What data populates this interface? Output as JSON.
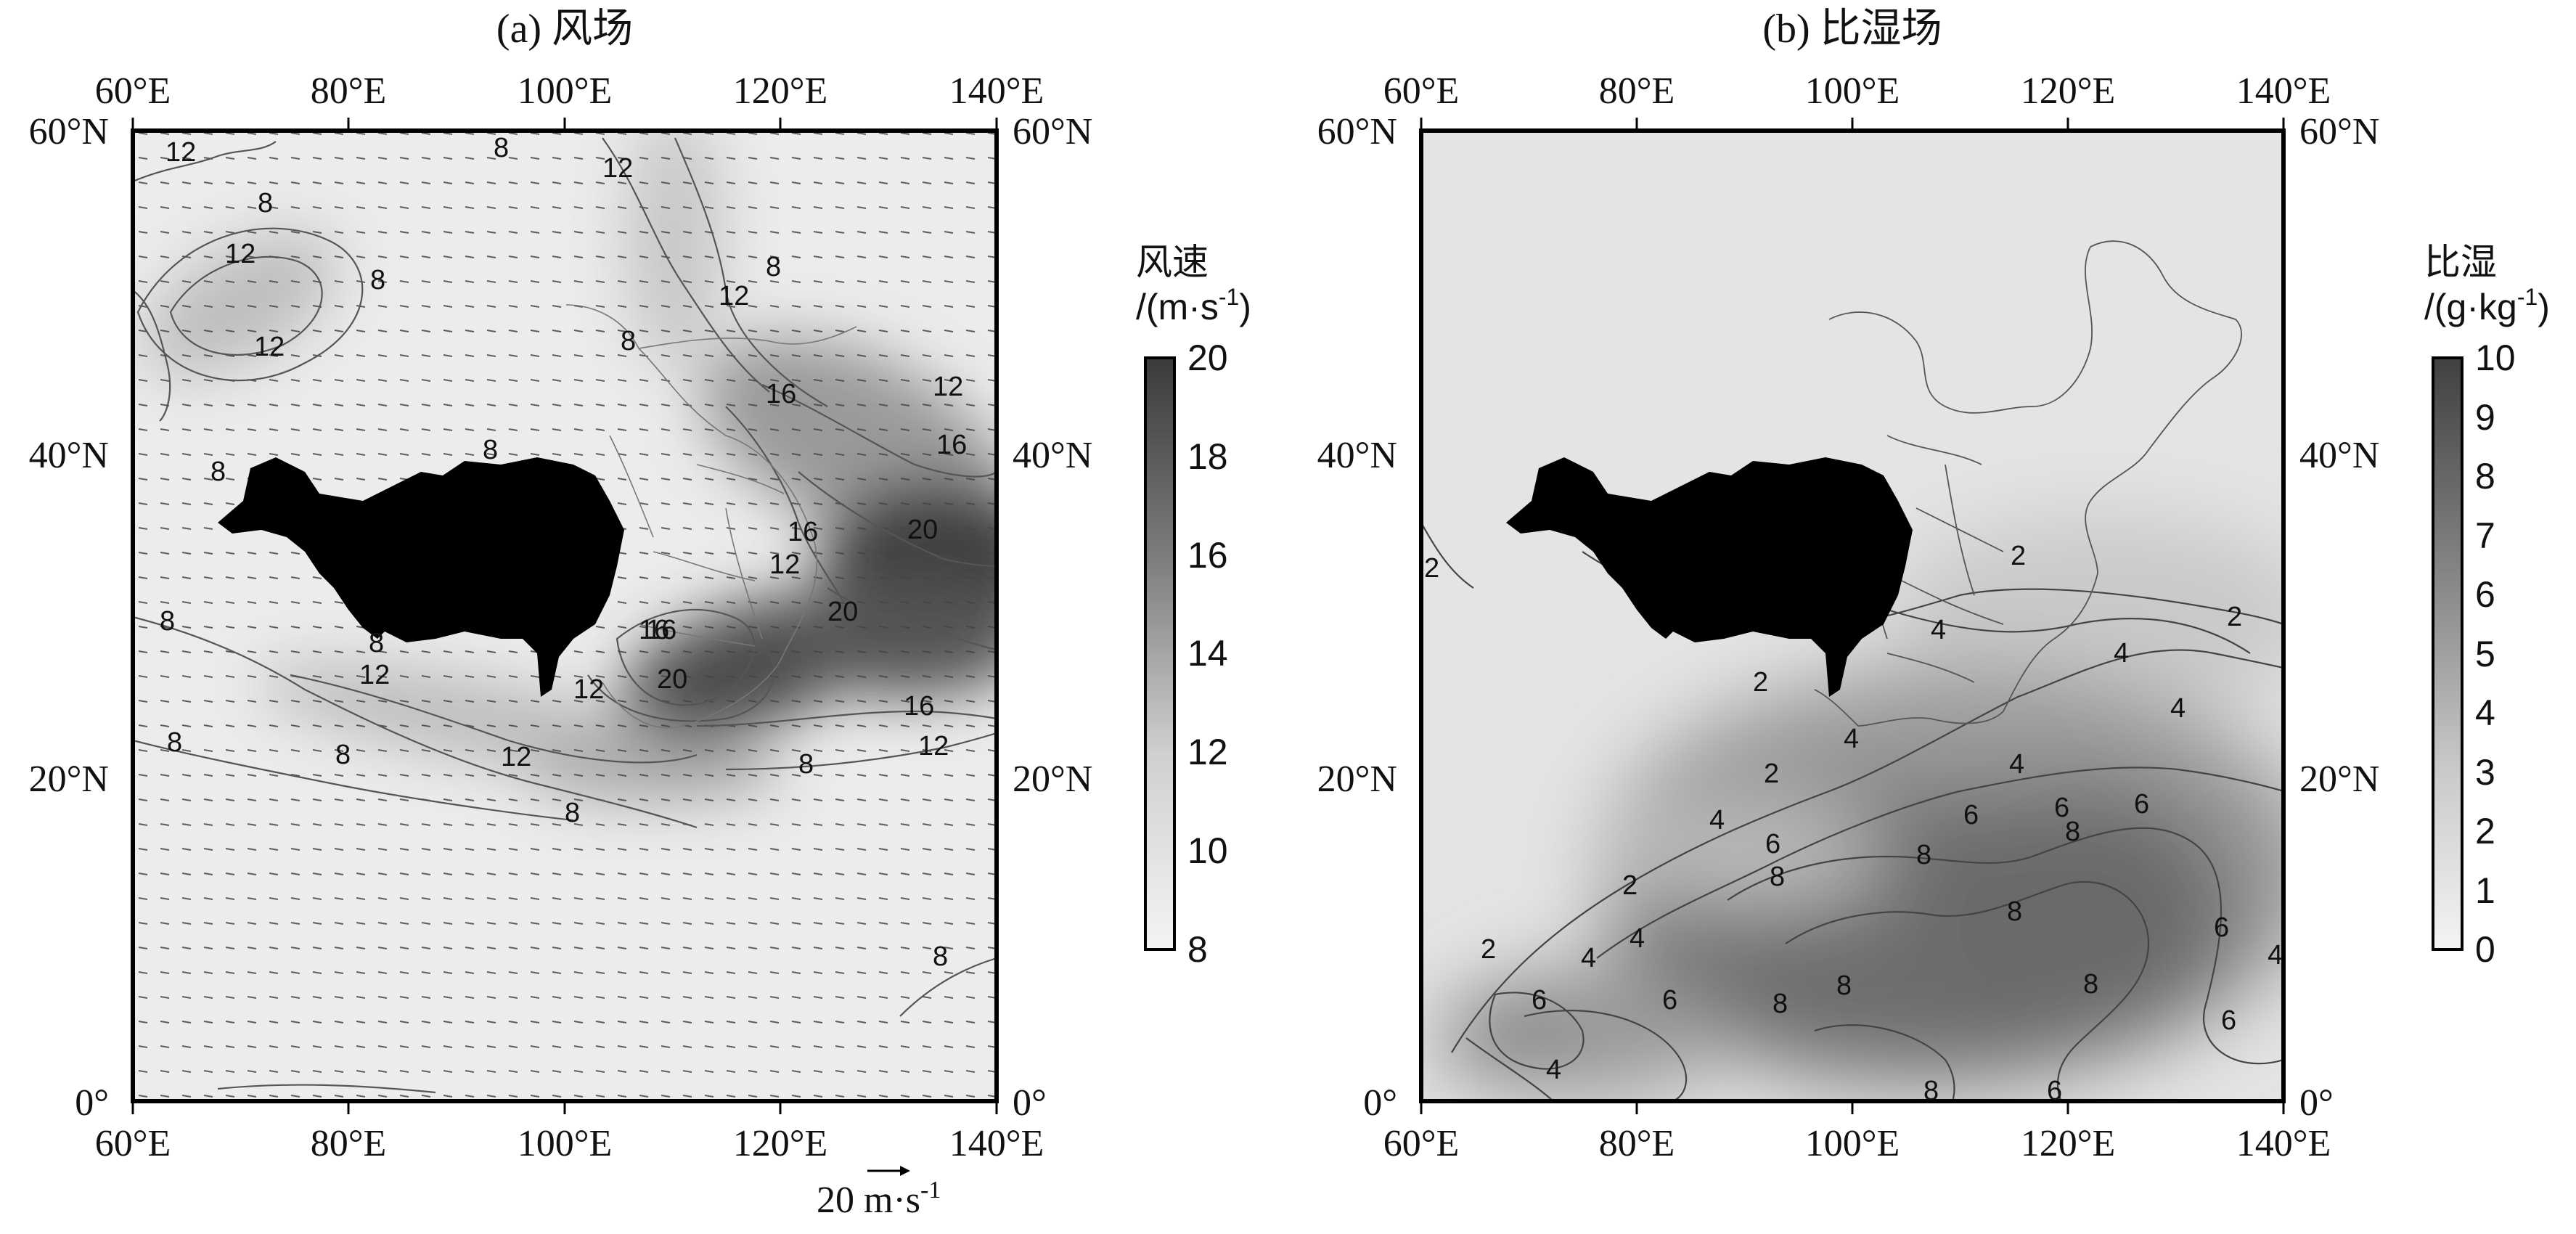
{
  "panels": [
    {
      "id": "a",
      "title": "(a) 风场",
      "x_ticks": [
        "60°E",
        "80°E",
        "100°E",
        "120°E",
        "140°E"
      ],
      "y_ticks": [
        "0°",
        "20°N",
        "40°N",
        "60°N"
      ],
      "colorbar": {
        "title": "风速",
        "unit_base": "/(m·s",
        "unit_sup": "-1",
        "unit_close": ")",
        "min": 8,
        "max": 20,
        "ticks": [
          "8",
          "10",
          "12",
          "14",
          "16",
          "18",
          "20"
        ]
      },
      "contour_labels": [
        "12",
        "8",
        "12",
        "8",
        "12",
        "8",
        "12",
        "8",
        "12",
        "8",
        "16",
        "12",
        "16",
        "8",
        "8",
        "16",
        "12",
        "20",
        "20",
        "16",
        "12",
        "8",
        "12",
        "8",
        "16",
        "20",
        "16",
        "12",
        "12",
        "8",
        "8",
        "8",
        "8",
        "8"
      ],
      "reference_vector": {
        "label": "20 m·s",
        "sup": "-1"
      }
    },
    {
      "id": "b",
      "title": "(b) 比湿场",
      "x_ticks": [
        "60°E",
        "80°E",
        "100°E",
        "120°E",
        "140°E"
      ],
      "y_ticks": [
        "0°",
        "20°N",
        "40°N",
        "60°N"
      ],
      "colorbar": {
        "title": "比湿",
        "unit_base": "/(g·kg",
        "unit_sup": "-1",
        "unit_close": ")",
        "min": 0,
        "max": 10,
        "ticks": [
          "0",
          "1",
          "2",
          "3",
          "4",
          "5",
          "6",
          "7",
          "8",
          "9",
          "10"
        ]
      },
      "contour_labels": [
        "2",
        "2",
        "2",
        "4",
        "2",
        "4",
        "4",
        "4",
        "2",
        "4",
        "6",
        "6",
        "6",
        "8",
        "8",
        "6",
        "8",
        "2",
        "4",
        "4",
        "6",
        "8",
        "8",
        "6",
        "4",
        "6",
        "8",
        "8",
        "4",
        "6",
        "8",
        "6",
        "4",
        "2"
      ]
    }
  ],
  "colors": {
    "frame": "#000000",
    "plateau": "#000000",
    "background": "#ffffff"
  }
}
